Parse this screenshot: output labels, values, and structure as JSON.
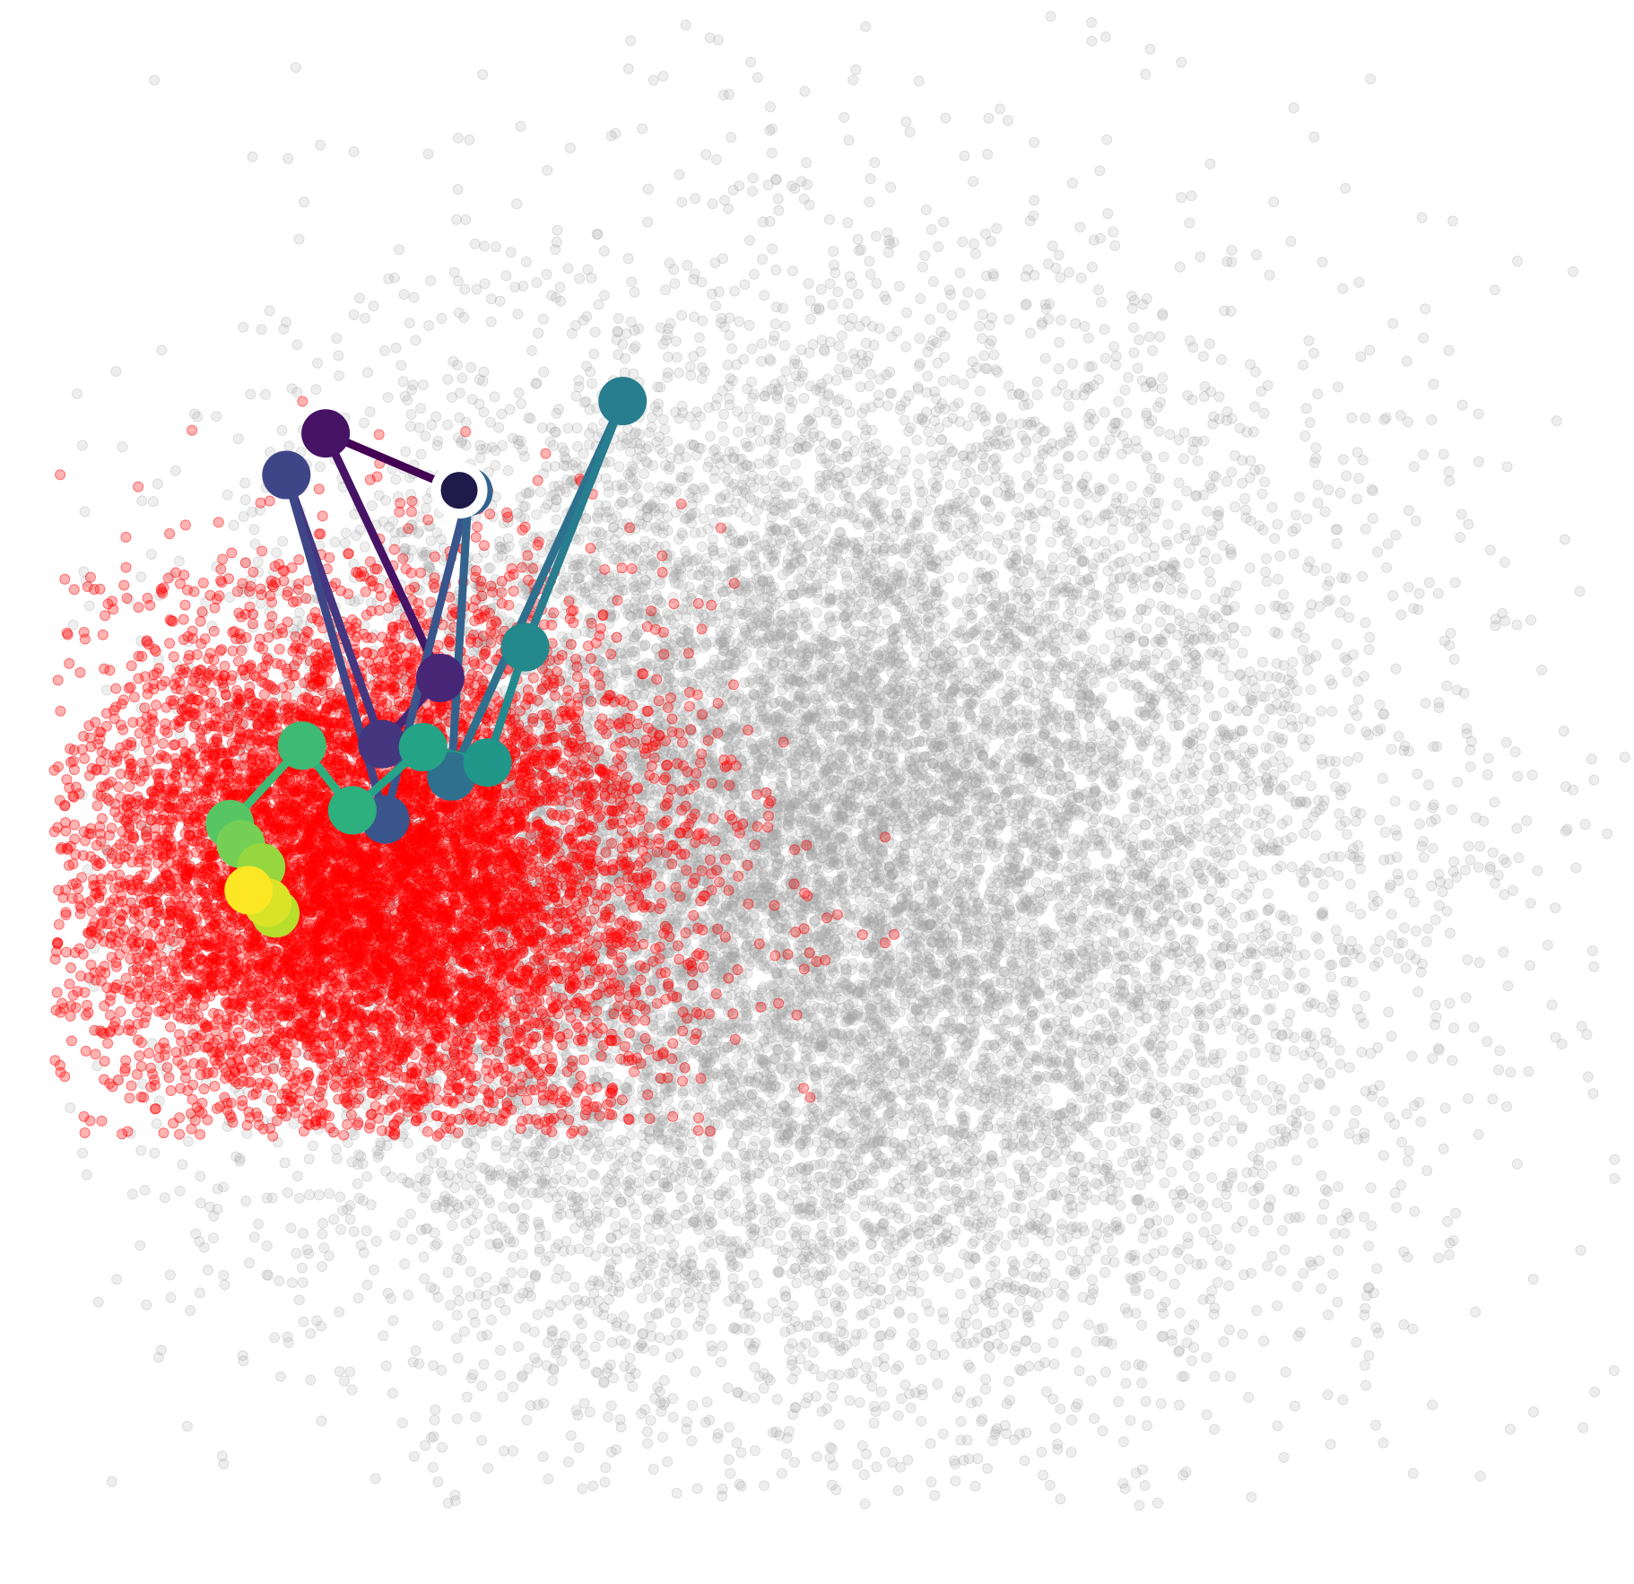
{
  "chart_data": {
    "type": "scatter",
    "title": "",
    "xlabel": "",
    "ylabel": "",
    "axes_visible": false,
    "grid": false,
    "legend": "none",
    "xlim": [
      0,
      100
    ],
    "ylim": [
      0,
      100
    ],
    "series": [
      {
        "role": "background",
        "color": "#a0a0a0",
        "opacity": 0.18,
        "marker": "circle",
        "points_estimated": 60000,
        "distribution": {
          "center": [
            48,
            45
          ],
          "spread": [
            17,
            17
          ],
          "x_range": [
            1,
            100
          ],
          "y_range": [
            3,
            100
          ]
        }
      },
      {
        "role": "highlight",
        "color": "#ff0000",
        "opacity": 0.3,
        "marker": "circle",
        "points_estimated": 14000,
        "distribution": {
          "center": [
            20,
            44
          ],
          "spread": [
            9,
            8.5
          ],
          "x_range": [
            0,
            94
          ],
          "y_range": [
            27,
            100
          ]
        }
      },
      {
        "role": "trajectory",
        "colormap": "viridis",
        "marker": "circle",
        "start_marker": {
          "face": "#1f1a4a",
          "edge": "#ffffff"
        },
        "points": [
          {
            "x": 25.8,
            "y": 69.0
          },
          {
            "x": 17.3,
            "y": 72.7
          },
          {
            "x": 24.6,
            "y": 56.8
          },
          {
            "x": 20.9,
            "y": 52.5
          },
          {
            "x": 14.8,
            "y": 70.0
          },
          {
            "x": 21.1,
            "y": 47.6
          },
          {
            "x": 26.4,
            "y": 68.9
          },
          {
            "x": 25.3,
            "y": 50.4
          },
          {
            "x": 36.2,
            "y": 74.8
          },
          {
            "x": 30.0,
            "y": 58.8
          },
          {
            "x": 27.6,
            "y": 51.3
          },
          {
            "x": 23.5,
            "y": 52.3
          },
          {
            "x": 19.0,
            "y": 48.2
          },
          {
            "x": 15.8,
            "y": 52.4
          },
          {
            "x": 11.2,
            "y": 47.3
          },
          {
            "x": 11.9,
            "y": 46.0
          },
          {
            "x": 13.2,
            "y": 44.5
          },
          {
            "x": 14.1,
            "y": 41.5
          },
          {
            "x": 13.6,
            "y": 42.2
          },
          {
            "x": 12.4,
            "y": 43.0
          }
        ]
      }
    ]
  }
}
